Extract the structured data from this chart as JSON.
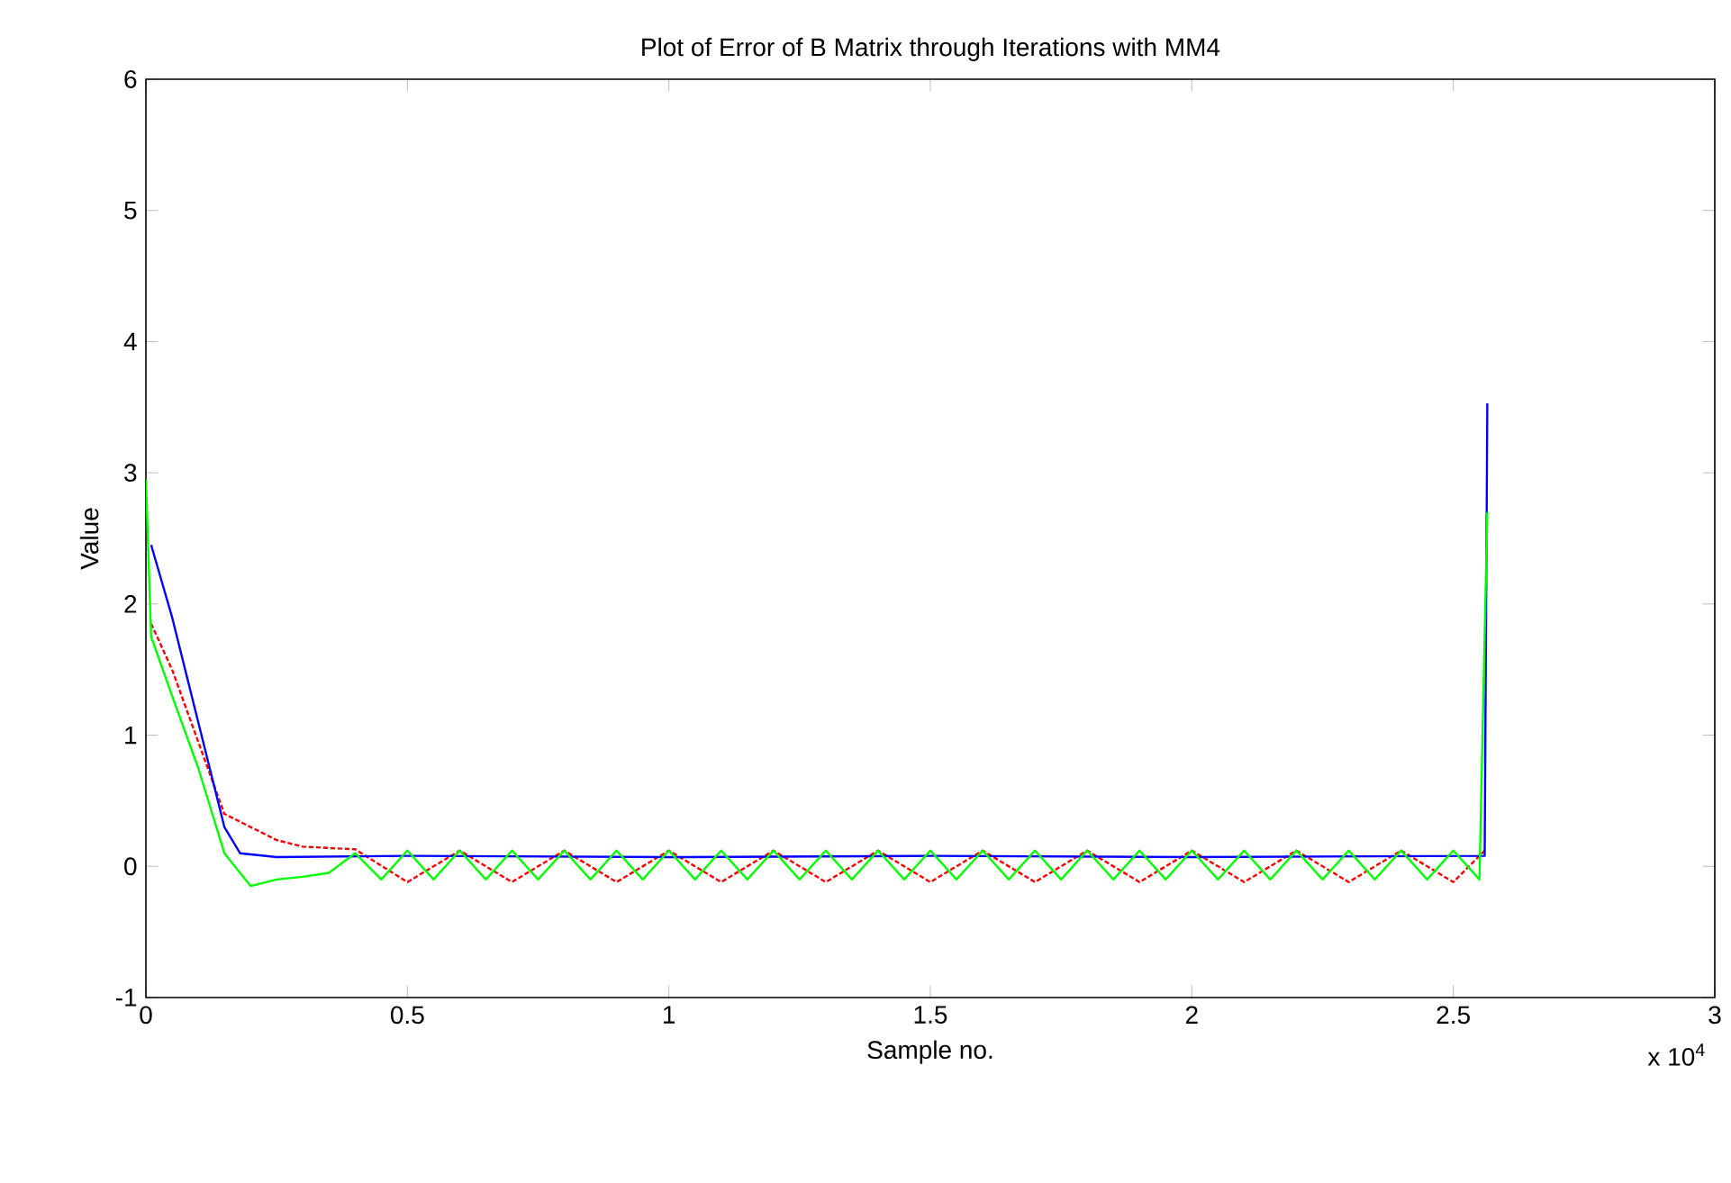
{
  "chart_data": {
    "type": "line",
    "title": "Plot of Error of B Matrix through Iterations with MM4",
    "xlabel": "Sample no.",
    "ylabel": "Value",
    "annotations": [
      "x 10$^{4}$"
    ],
    "xlim": [
      0,
      3
    ],
    "ylim": [
      -1,
      6
    ],
    "xticks": [
      0,
      0.5,
      1,
      1.5,
      2,
      2.5,
      3
    ],
    "yticks": [
      -1,
      0,
      1,
      2,
      3,
      4,
      5,
      6
    ],
    "series": [
      {
        "color": "#ff0000",
        "line_style": "dashed",
        "x": [
          0.01,
          0.05,
          0.1,
          0.15,
          0.2,
          0.25,
          0.3,
          0.4,
          0.5,
          0.6,
          0.7,
          0.8,
          0.9,
          1.0,
          1.1,
          1.2,
          1.3,
          1.4,
          1.5,
          1.6,
          1.7,
          1.8,
          1.9,
          2.0,
          2.1,
          2.2,
          2.3,
          2.4,
          2.5,
          2.56
        ],
        "values": [
          1.85,
          1.5,
          0.95,
          0.4,
          0.3,
          0.2,
          0.15,
          0.13,
          -0.12,
          0.12,
          -0.12,
          0.12,
          -0.12,
          0.12,
          -0.12,
          0.12,
          -0.12,
          0.12,
          -0.12,
          0.12,
          -0.12,
          0.12,
          -0.12,
          0.12,
          -0.12,
          0.12,
          -0.12,
          0.12,
          -0.12,
          0.12
        ]
      },
      {
        "color": "#0000ff",
        "line_style": "solid",
        "x": [
          0.01,
          0.05,
          0.1,
          0.15,
          0.18,
          0.25,
          0.5,
          1.0,
          1.5,
          2.0,
          2.56,
          2.565
        ],
        "values": [
          2.45,
          1.9,
          1.1,
          0.3,
          0.1,
          0.07,
          0.08,
          0.07,
          0.08,
          0.07,
          0.08,
          3.53
        ]
      },
      {
        "color": "#00ff00",
        "line_style": "solid",
        "x": [
          0,
          0.01,
          0.05,
          0.1,
          0.15,
          0.2,
          0.25,
          0.3,
          0.35,
          0.4,
          0.45,
          0.5,
          0.55,
          0.6,
          0.65,
          0.7,
          0.75,
          0.8,
          0.85,
          0.9,
          0.95,
          1.0,
          1.05,
          1.1,
          1.15,
          1.2,
          1.25,
          1.3,
          1.35,
          1.4,
          1.45,
          1.5,
          1.55,
          1.6,
          1.65,
          1.7,
          1.75,
          1.8,
          1.85,
          1.9,
          1.95,
          2.0,
          2.05,
          2.1,
          2.15,
          2.2,
          2.25,
          2.3,
          2.35,
          2.4,
          2.45,
          2.5,
          2.55,
          2.565
        ],
        "values": [
          2.95,
          1.75,
          1.3,
          0.75,
          0.1,
          -0.15,
          -0.1,
          -0.08,
          -0.05,
          0.1,
          -0.1,
          0.12,
          -0.1,
          0.12,
          -0.1,
          0.12,
          -0.1,
          0.12,
          -0.1,
          0.12,
          -0.1,
          0.12,
          -0.1,
          0.12,
          -0.1,
          0.12,
          -0.1,
          0.12,
          -0.1,
          0.12,
          -0.1,
          0.12,
          -0.1,
          0.12,
          -0.1,
          0.12,
          -0.1,
          0.12,
          -0.1,
          0.12,
          -0.1,
          0.12,
          -0.1,
          0.12,
          -0.1,
          0.12,
          -0.1,
          0.12,
          -0.1,
          0.12,
          -0.1,
          0.12,
          -0.1,
          2.7
        ]
      }
    ]
  }
}
